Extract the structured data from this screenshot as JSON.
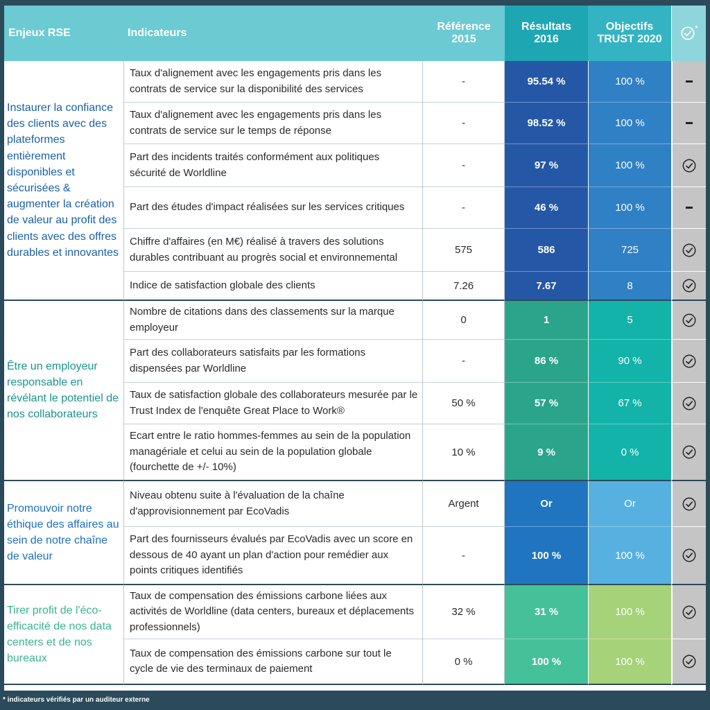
{
  "header": {
    "enjeux": "Enjeux RSE",
    "indicateurs": "Indicateurs",
    "reference": "Référence 2015",
    "resultats": "Résultats 2016",
    "objectifs": "Objectifs TRUST 2020",
    "status_icon": "check-circle-icon",
    "status_mark": "*"
  },
  "groups": [
    {
      "enjeu": "Instaurer la confiance des clients avec des plateformes entièrement disponibles et sécurisées & augmenter la création de valeur au profit des clients avec des offres durables et innovantes",
      "color": "#1a5fa8",
      "rows": [
        {
          "indicator": "Taux d'alignement avec les engagements pris dans les contrats de service sur la disponibilité des services",
          "reference": "-",
          "result": "95.54 %",
          "objective": "100 %",
          "status": "dash"
        },
        {
          "indicator": "Taux d'alignement avec les engagements pris dans les contrats de service sur le temps de réponse",
          "reference": "-",
          "result": "98.52 %",
          "objective": "100 %",
          "status": "dash"
        },
        {
          "indicator": "Part des incidents traités conformément aux politiques sécurité de Worldline",
          "reference": "-",
          "result": "97 %",
          "objective": "100 %",
          "status": "check"
        },
        {
          "indicator": "Part des études d'impact réalisées sur les services critiques",
          "reference": "-",
          "result": "46 %",
          "objective": "100 %",
          "status": "dash"
        },
        {
          "indicator": "Chiffre d'affaires (en M€) réalisé à travers des solutions durables contribuant au progrès social et environnemental",
          "reference": "575",
          "result": "586",
          "objective": "725",
          "status": "check"
        },
        {
          "indicator": "Indice de satisfaction globale des clients",
          "reference": "7.26",
          "result": "7.67",
          "objective": "8",
          "status": "check"
        }
      ]
    },
    {
      "enjeu": "Être un employeur responsable en révélant le potentiel de nos collaborateurs",
      "color": "#17948c",
      "rows": [
        {
          "indicator": "Nombre de citations dans des classements sur la marque employeur",
          "reference": "0",
          "result": "1",
          "objective": "5",
          "status": "check"
        },
        {
          "indicator": "Part des collaborateurs satisfaits par les formations dispensées par Worldline",
          "reference": "-",
          "result": "86 %",
          "objective": "90 %",
          "status": "check"
        },
        {
          "indicator": "Taux de satisfaction globale des collaborateurs mesurée par le Trust Index de l'enquête Great Place to Work®",
          "reference": "50 %",
          "result": "57 %",
          "objective": "67 %",
          "status": "check"
        },
        {
          "indicator": "Ecart entre le ratio hommes-femmes au sein de la population managériale et celui au sein de la population globale (fourchette de +/- 10%)",
          "reference": "10 %",
          "result": "9 %",
          "objective": "0 %",
          "status": "check"
        }
      ]
    },
    {
      "enjeu": "Promouvoir notre éthique des affaires au sein de notre chaîne de valeur",
      "color": "#1d6fbf",
      "rows": [
        {
          "indicator": "Niveau obtenu suite à l'évaluation de la chaîne d'approvisionnement par EcoVadis",
          "reference": "Argent",
          "result": "Or",
          "objective": "Or",
          "status": "check"
        },
        {
          "indicator": "Part des fournisseurs évalués par EcoVadis avec un score en dessous de 40 ayant un plan d'action pour remédier aux points critiques identifiés",
          "reference": "-",
          "result": "100 %",
          "objective": "100 %",
          "status": "check"
        }
      ]
    },
    {
      "enjeu": "Tirer profit de l'éco-efficacité de nos data centers et de nos bureaux",
      "color": "#3bb38e",
      "rows": [
        {
          "indicator": "Taux de compensation des émissions carbone liées aux activités de Worldline (data centers, bureaux et déplacements professionnels)",
          "reference": "32 %",
          "result": "31 %",
          "objective": "100 %",
          "status": "check"
        },
        {
          "indicator": "Taux de compensation des émissions carbone sur tout le cycle de vie des terminaux de paiement",
          "reference": "0 %",
          "result": "100 %",
          "objective": "100 %",
          "status": "check"
        }
      ]
    }
  ],
  "colors": {
    "result_g1": "#2557a7",
    "objective_g1": "#2f80c5",
    "result_g2": "#2aa58c",
    "objective_g2": "#13b3a9",
    "result_g3": "#1f75c0",
    "objective_g3": "#56b1e0",
    "result_g4": "#45c19a",
    "objective_g4": "#a6d279"
  },
  "footnote": "* indicateurs vérifiés par un auditeur externe"
}
